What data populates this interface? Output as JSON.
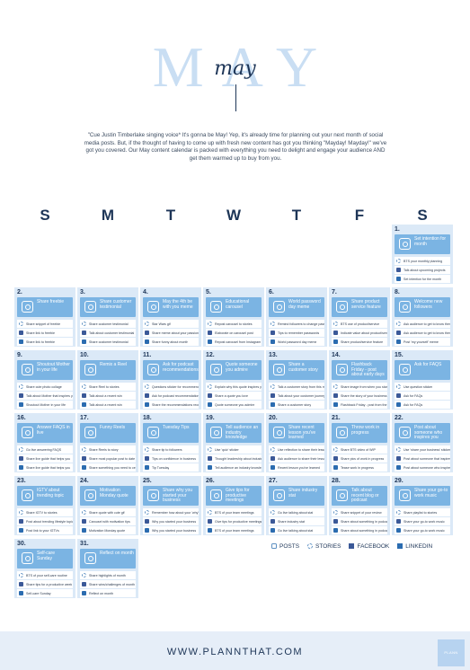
{
  "hero": {
    "big": "MAY",
    "script": "may"
  },
  "intro": "\"Cue Justin Timberlake singing voice* It's gonna be May! Yep, it's already time for planning out your next month of social media posts. But, if the thought of having to come up with fresh new content has got you thinking \"Mayday! Mayday!\" we've got you covered. Our May content calendar is packed with everything you need to delight and engage your audience AND get them warmed up to buy from you.",
  "days": [
    "S",
    "M",
    "T",
    "W",
    "T",
    "F",
    "S"
  ],
  "legend": {
    "posts": "POSTS",
    "stories": "STORIES",
    "facebook": "FACEBOOK",
    "linkedin": "LINKEDIN"
  },
  "footer": {
    "url": "WWW.PLANNTHAT.COM",
    "logo": "PLANN"
  },
  "calendar": [
    {
      "num": "1.",
      "title": "Set intention for month",
      "items": [
        "BTS your monthly planning",
        "Talk about upcoming projects",
        "Set intention for the month"
      ]
    },
    {
      "num": "2.",
      "title": "Share freebie",
      "items": [
        "Share snippet of freebie",
        "Share link to freebie",
        "Share link to freebie"
      ]
    },
    {
      "num": "3.",
      "title": "Share customer testimonial",
      "items": [
        "Share customer testimonial",
        "Talk about customer testimonial",
        "Share customer testimonial"
      ]
    },
    {
      "num": "4.",
      "title": "May the 4th be with you meme",
      "items": [
        "Star Wars gif",
        "Share meme about your passion",
        "Share funny about month"
      ]
    },
    {
      "num": "5.",
      "title": "Educational carousel",
      "items": [
        "Repost carousel to stories",
        "Elaborate on carousel post",
        "Repost carousel from Instagram"
      ]
    },
    {
      "num": "6.",
      "title": "World password day meme",
      "items": [
        "Remind followers to change passwords",
        "Tips to remember passwords",
        "World password day meme"
      ]
    },
    {
      "num": "7.",
      "title": "Share product service feature",
      "items": [
        "BTS use of product/service",
        "Indicate value about product/service",
        "Share product/service feature"
      ]
    },
    {
      "num": "8.",
      "title": "Welcome new followers",
      "items": [
        "Ask audience to get to know them",
        "Ask audience to get to know them",
        "Post 'my yourself' meme"
      ]
    },
    {
      "num": "9.",
      "title": "Shoutout Mother in your life",
      "items": [
        "Share cute photo collage",
        "Talk about Mother that inspires you",
        "Shoutout Mother in your life"
      ]
    },
    {
      "num": "10.",
      "title": "Remix a Reel",
      "items": [
        "Share Reel to stories",
        "Talk about a recent win",
        "Talk about a recent win"
      ]
    },
    {
      "num": "11.",
      "title": "Ask for podcast recommendations",
      "items": [
        "Questions sticker for recommendations",
        "Ask for podcast recommendations",
        "Share the recommendations received"
      ]
    },
    {
      "num": "12.",
      "title": "Quote someone you admire",
      "items": [
        "Explain why this quote inspires you",
        "Share a quote you love",
        "Quote someone you admire"
      ]
    },
    {
      "num": "13.",
      "title": "Share a customer story",
      "items": [
        "Talk a customer story from this month",
        "Talk about your customer journey",
        "Share a customer story"
      ]
    },
    {
      "num": "14.",
      "title": "Flashback Friday - post about early days",
      "items": [
        "Share image from when you started",
        "Share the story of your business",
        "Flashback Friday - post from the early days"
      ]
    },
    {
      "num": "15.",
      "title": "Ask for FAQS",
      "items": [
        "Use question sticker",
        "Ask for FAQs",
        "Ask for FAQs"
      ]
    },
    {
      "num": "16.",
      "title": "Answer FAQS in live",
      "items": [
        "Go live answering FAQS",
        "Share live guide that helps you",
        "Share live guide that helps you"
      ]
    },
    {
      "num": "17.",
      "title": "Funny Reels",
      "items": [
        "Share Reels to story",
        "Share most popular post to date",
        "Share something you need to celebrate"
      ]
    },
    {
      "num": "18.",
      "title": "Tuesday Tips",
      "items": [
        "Share tip to followers",
        "Tips on confidence in business",
        "Tip Tuesday"
      ]
    },
    {
      "num": "19.",
      "title": "Tell audience an industry knowledge",
      "items": [
        "Use 'quiz' sticker",
        "Thought leadership about industry",
        "Tell audience an industry knowledge"
      ]
    },
    {
      "num": "20.",
      "title": "Share recent lesson you've learned",
      "items": [
        "Use reflection to share their lessons",
        "Ask audience to share their lessons",
        "Recent lesson you've learned"
      ]
    },
    {
      "num": "21.",
      "title": "Throw work in progress",
      "items": [
        "Share BTS video of WIP",
        "Share pics of work in progress",
        "Tease work in progress"
      ]
    },
    {
      "num": "22.",
      "title": "Post about someone who inspires you",
      "items": [
        "Use 'share your business' sticker",
        "Post about someone that inspires you",
        "Post about someone who inspires you"
      ]
    },
    {
      "num": "23.",
      "title": "IGTV about trending topic",
      "items": [
        "Share IGTV to stories",
        "Post about trending lifestyle topic",
        "Post link to your IGTVs"
      ]
    },
    {
      "num": "24.",
      "title": "Motivation Monday quote",
      "items": [
        "Share quote with cute gif",
        "Carousel with motivation tips",
        "Motivation Monday quote"
      ]
    },
    {
      "num": "25.",
      "title": "Share why you started your business",
      "items": [
        "Remember how about your 'why'",
        "Why you started your business",
        "Why you started your business"
      ]
    },
    {
      "num": "26.",
      "title": "Give tips for productive meetings",
      "items": [
        "BTS of your team meetings",
        "Give tips for productive meetings",
        "BTS of your team meetings"
      ]
    },
    {
      "num": "27.",
      "title": "Share industry stat",
      "items": [
        "Go live talking about stat",
        "Share industry stat",
        "Go live talking about stat"
      ]
    },
    {
      "num": "28.",
      "title": "Talk about recent blog or podcast",
      "items": [
        "Share snippet of your review",
        "Share about something in podcast",
        "Share about something in podcast"
      ]
    },
    {
      "num": "29.",
      "title": "Share your go-to work music",
      "items": [
        "Share playlist to stories",
        "Share your go-to work music",
        "Share your go-to work music"
      ]
    },
    {
      "num": "30.",
      "title": "Self-care Sunday",
      "items": [
        "BTS of your self-care routine",
        "Share tips for a productive week",
        "Self-care Sunday"
      ]
    },
    {
      "num": "31.",
      "title": "Reflect on month",
      "items": [
        "Share highlights of month",
        "Share wins/challenges of month",
        "Reflect on month"
      ]
    }
  ],
  "colors": {
    "navy": "#1d3557",
    "cell": "#dbe9f7",
    "card": "#7bb4e3",
    "hero": "#c9def3",
    "footer": "#e6eef8"
  }
}
